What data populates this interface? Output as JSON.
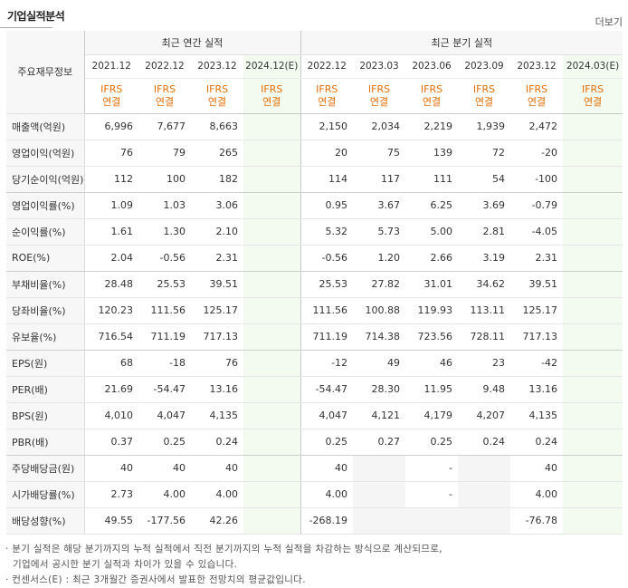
{
  "section": {
    "title": "기업실적분석",
    "more_label": "더보기"
  },
  "header": {
    "row_head": "주요재무정보",
    "annual_title": "최근 연간 실적",
    "quarter_title": "최근 분기 실적",
    "annual_periods": [
      "2021.12",
      "2022.12",
      "2023.12",
      "2024.12(E)"
    ],
    "quarter_periods": [
      "2022.12",
      "2023.03",
      "2023.06",
      "2023.09",
      "2023.12",
      "2024.03(E)"
    ],
    "ifrs_top": "IFRS",
    "ifrs_bottom": "연결"
  },
  "rows": [
    {
      "label": "매출액(억원)",
      "annual": [
        "6,996",
        "7,677",
        "8,663",
        ""
      ],
      "quarter": [
        "2,150",
        "2,034",
        "2,219",
        "1,939",
        "2,472",
        ""
      ]
    },
    {
      "label": "영업이익(억원)",
      "annual": [
        "76",
        "79",
        "265",
        ""
      ],
      "quarter": [
        "20",
        "75",
        "139",
        "72",
        "-20",
        ""
      ]
    },
    {
      "label": "당기순이익(억원)",
      "annual": [
        "112",
        "100",
        "182",
        ""
      ],
      "quarter": [
        "114",
        "117",
        "111",
        "54",
        "-100",
        ""
      ]
    },
    {
      "label": "영업이익률(%)",
      "annual": [
        "1.09",
        "1.03",
        "3.06",
        ""
      ],
      "quarter": [
        "0.95",
        "3.67",
        "6.25",
        "3.69",
        "-0.79",
        ""
      ]
    },
    {
      "label": "순이익률(%)",
      "annual": [
        "1.61",
        "1.30",
        "2.10",
        ""
      ],
      "quarter": [
        "5.32",
        "5.73",
        "5.00",
        "2.81",
        "-4.05",
        ""
      ]
    },
    {
      "label": "ROE(%)",
      "annual": [
        "2.04",
        "-0.56",
        "2.31",
        ""
      ],
      "quarter": [
        "-0.56",
        "1.20",
        "2.66",
        "3.19",
        "2.31",
        ""
      ]
    },
    {
      "label": "부채비율(%)",
      "annual": [
        "28.48",
        "25.53",
        "39.51",
        ""
      ],
      "quarter": [
        "25.53",
        "27.82",
        "31.01",
        "34.62",
        "39.51",
        ""
      ]
    },
    {
      "label": "당좌비율(%)",
      "annual": [
        "120.23",
        "111.56",
        "125.17",
        ""
      ],
      "quarter": [
        "111.56",
        "100.88",
        "119.93",
        "113.11",
        "125.17",
        ""
      ]
    },
    {
      "label": "유보율(%)",
      "annual": [
        "716.54",
        "711.19",
        "717.13",
        ""
      ],
      "quarter": [
        "711.19",
        "714.38",
        "723.56",
        "728.11",
        "717.13",
        ""
      ]
    },
    {
      "label": "EPS(원)",
      "annual": [
        "68",
        "-18",
        "76",
        ""
      ],
      "quarter": [
        "-12",
        "49",
        "46",
        "23",
        "-42",
        ""
      ]
    },
    {
      "label": "PER(배)",
      "annual": [
        "21.69",
        "-54.47",
        "13.16",
        ""
      ],
      "quarter": [
        "-54.47",
        "28.30",
        "11.95",
        "9.48",
        "13.16",
        ""
      ]
    },
    {
      "label": "BPS(원)",
      "annual": [
        "4,010",
        "4,047",
        "4,135",
        ""
      ],
      "quarter": [
        "4,047",
        "4,121",
        "4,179",
        "4,207",
        "4,135",
        ""
      ]
    },
    {
      "label": "PBR(배)",
      "annual": [
        "0.37",
        "0.25",
        "0.24",
        ""
      ],
      "quarter": [
        "0.25",
        "0.27",
        "0.25",
        "0.24",
        "0.24",
        ""
      ]
    },
    {
      "label": "주당배당금(원)",
      "annual": [
        "40",
        "40",
        "40",
        ""
      ],
      "quarter": [
        "40",
        "",
        "-",
        "",
        "40",
        ""
      ]
    },
    {
      "label": "시가배당률(%)",
      "annual": [
        "2.73",
        "4.00",
        "4.00",
        ""
      ],
      "quarter": [
        "4.00",
        "",
        "-",
        "",
        "4.00",
        ""
      ]
    },
    {
      "label": "배당성향(%)",
      "annual": [
        "49.55",
        "-177.56",
        "42.26",
        ""
      ],
      "quarter": [
        "-268.19",
        "",
        "",
        "",
        "-76.78",
        ""
      ]
    }
  ],
  "notes": [
    "· 분기 실적은 해당 분기까지의 누적 실적에서 직전 분기까지의 누적 실적을 차감하는 방식으로 계산되므로,",
    "  기업에서 공시한 분기 실적과 차이가 있을 수 있습니다.",
    "· 컨센서스(E) : 최근 3개월간 증권사에서 발표한 전망치의 평균값입니다."
  ],
  "colors": {
    "ifrs": "#e26f08",
    "negative": "#e8001c",
    "estimate_bg": "#f3fbf0"
  }
}
